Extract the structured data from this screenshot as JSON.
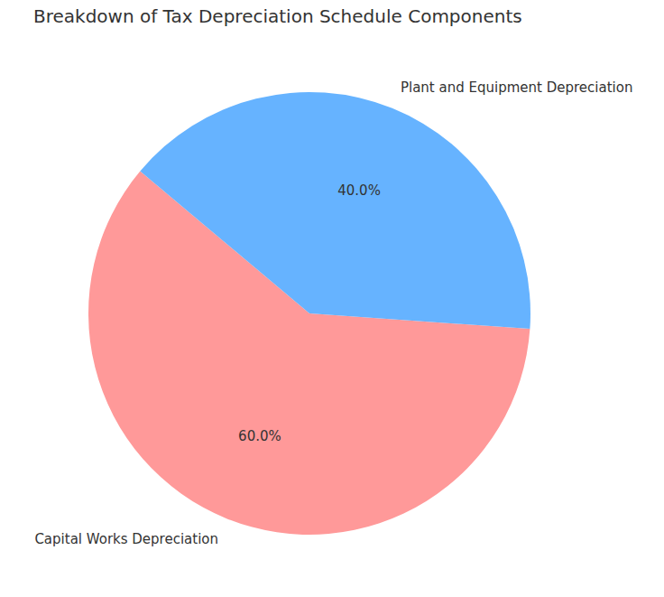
{
  "chart_data": {
    "type": "pie",
    "title": "Breakdown of Tax Depreciation Schedule Components",
    "categories": [
      "Capital Works Depreciation",
      "Plant and Equipment Depreciation"
    ],
    "values": [
      60,
      40
    ],
    "value_labels": [
      "60.0%",
      "40.0%"
    ],
    "colors": [
      "#ff9999",
      "#66b3ff"
    ],
    "data_labels": true
  }
}
